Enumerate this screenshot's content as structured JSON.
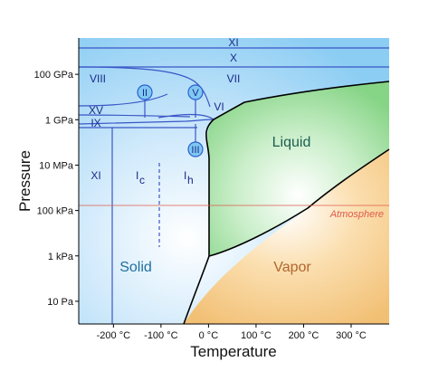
{
  "chart_data": {
    "type": "phase-diagram",
    "title": "",
    "xlabel": "Temperature",
    "ylabel": "Pressure",
    "x_ticks": [
      {
        "value": -200,
        "label": "-200 °C"
      },
      {
        "value": -100,
        "label": "-100 °C"
      },
      {
        "value": 0,
        "label": "0 °C"
      },
      {
        "value": 100,
        "label": "100 °C"
      },
      {
        "value": 200,
        "label": "200 °C"
      },
      {
        "value": 300,
        "label": "300 °C"
      }
    ],
    "xlim": [
      -273,
      380
    ],
    "y_scale": "log",
    "y_ticks": [
      {
        "value": 10,
        "label": "10 Pa"
      },
      {
        "value": 1000,
        "label": "1 kPa"
      },
      {
        "value": 100000,
        "label": "100 kPa"
      },
      {
        "value": 10000000,
        "label": "10 MPa"
      },
      {
        "value": 1000000000,
        "label": "1 GPa"
      },
      {
        "value": 100000000000,
        "label": "100 GPa"
      }
    ],
    "ylim_log10": [
      0,
      12.6
    ],
    "reference_line": {
      "label": "Atmosphere",
      "pressure": 101325,
      "color": "#e05a4a"
    },
    "region_labels": [
      {
        "label": "Solid",
        "class": "region-big",
        "color": "#1f6f9f"
      },
      {
        "label": "Liquid",
        "class": "region-big",
        "color": "#1f5f4f"
      },
      {
        "label": "Vapor",
        "class": "region-big",
        "color": "#b0662f"
      }
    ],
    "phase_labels": [
      {
        "label": "XI"
      },
      {
        "label": "X"
      },
      {
        "label": "VIII"
      },
      {
        "label": "VII"
      },
      {
        "label": "VI"
      },
      {
        "label": "XV"
      },
      {
        "label": "IX"
      },
      {
        "label": "XI"
      }
    ],
    "ice_ic": {
      "main": "I",
      "sub": "c"
    },
    "ice_ih": {
      "main": "I",
      "sub": "h"
    },
    "triple_points": [
      {
        "label": "II"
      },
      {
        "label": "V"
      },
      {
        "label": "III"
      }
    ],
    "colors": {
      "solid": "#9fd4f5",
      "liquid": "#8fd68f",
      "vapor": "#f2c27a",
      "boundary": "#000000",
      "phase_line": "#3a56c7",
      "marker_fill": "#7fc8f2",
      "marker_stroke": "#2a5fd0"
    }
  }
}
